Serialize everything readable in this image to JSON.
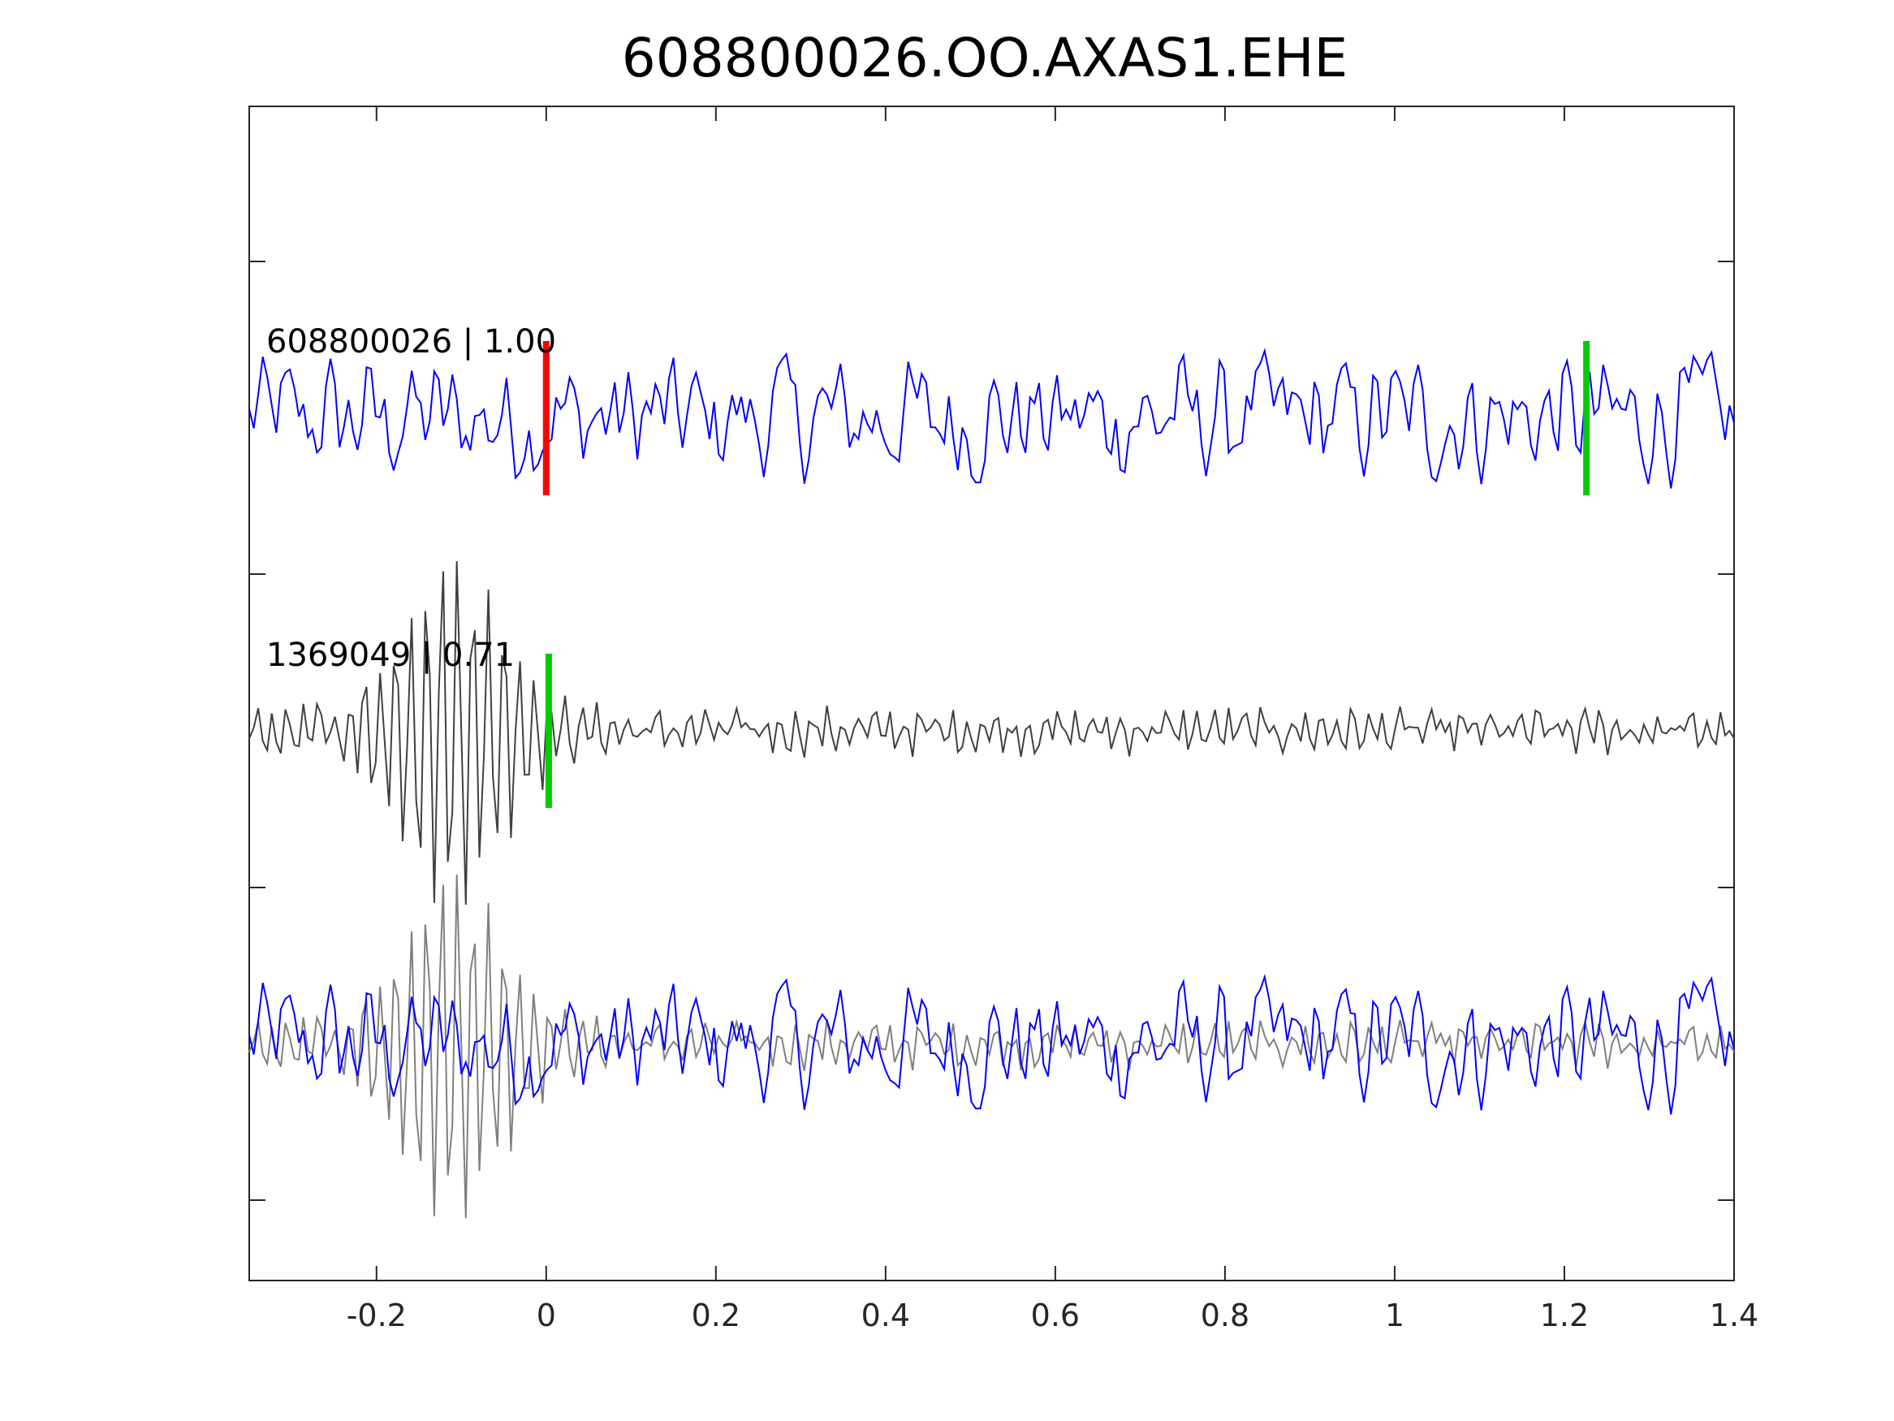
{
  "chart_data": {
    "type": "line",
    "title": "608800026.OO.AXAS1.EHE",
    "xlabel": "",
    "ylabel": "",
    "xlim": [
      -0.35,
      1.4
    ],
    "x_ticks": [
      "-0.2",
      "0",
      "0.2",
      "0.4",
      "0.6",
      "0.8",
      "1",
      "1.2",
      "1.4"
    ],
    "x_tick_values": [
      -0.2,
      0,
      0.2,
      0.4,
      0.6,
      0.8,
      1,
      1.2,
      1.4
    ],
    "y_ticks_labeled": false,
    "grid": false,
    "legend": "none",
    "traces": [
      {
        "label": "608800026 | 1.00",
        "color": "#0000ff",
        "picks": [
          {
            "time": 0.0,
            "color": "#ff0000"
          },
          {
            "time": 1.226,
            "color": "#00cc00"
          }
        ]
      },
      {
        "label": "1369049 | 0.71",
        "color": "#404040",
        "picks": [
          {
            "time": 0.003,
            "color": "#00cc00"
          }
        ]
      },
      {
        "label": "",
        "overlay": true,
        "colors": [
          "#0000ff",
          "#7f7f7f"
        ]
      }
    ]
  }
}
